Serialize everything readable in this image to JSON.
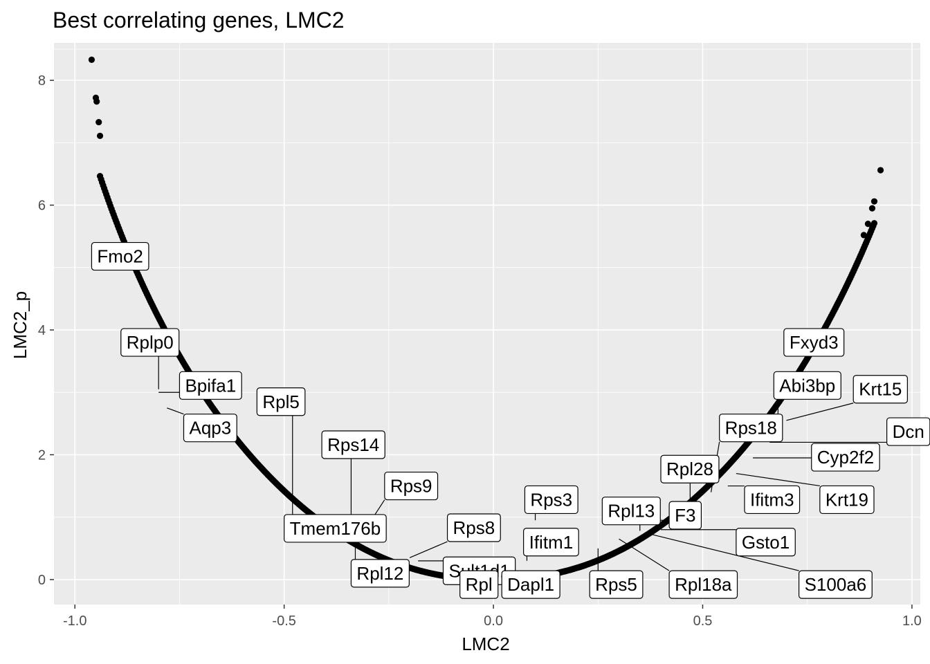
{
  "chart_data": {
    "type": "scatter",
    "title": "Best correlating genes, LMC2",
    "xlabel": "LMC2",
    "ylabel": "LMC2_p",
    "xlim": [
      -1.05,
      1.02
    ],
    "ylim": [
      -0.4,
      8.6
    ],
    "xticks": [
      -1.0,
      -0.5,
      0.0,
      0.5,
      1.0
    ],
    "xtick_labels": [
      "-1.0",
      "-0.5",
      "0.0",
      "0.5",
      "1.0"
    ],
    "yticks": [
      0,
      2,
      4,
      6,
      8
    ],
    "ytick_labels": [
      "0",
      "2",
      "4",
      "6",
      "8"
    ],
    "grid": true,
    "background": "#ebebeb",
    "point_color": "#000000",
    "curve": {
      "description_free_points": true,
      "left_x_range": [
        -0.94,
        -0.02
      ],
      "right_x_range": [
        0.02,
        0.91
      ],
      "extreme_points": [
        {
          "x": -0.96,
          "y": 8.33
        },
        {
          "x": -0.95,
          "y": 7.72
        },
        {
          "x": -0.948,
          "y": 7.66
        },
        {
          "x": -0.943,
          "y": 7.33
        },
        {
          "x": -0.94,
          "y": 7.11
        },
        {
          "x": 0.925,
          "y": 6.56
        },
        {
          "x": 0.91,
          "y": 6.06
        },
        {
          "x": 0.905,
          "y": 5.95
        },
        {
          "x": 0.895,
          "y": 5.7
        },
        {
          "x": 0.885,
          "y": 5.52
        }
      ]
    },
    "labeled_points": [
      {
        "name": "Fmo2",
        "x": -0.88,
        "y": 5.2,
        "lx": -0.96,
        "ly": 5.18
      },
      {
        "name": "Rplp0",
        "x": -0.8,
        "y": 3.05,
        "lx": -0.89,
        "ly": 3.8
      },
      {
        "name": "Bpifa1",
        "x": -0.8,
        "y": 3.0,
        "lx": -0.75,
        "ly": 3.11
      },
      {
        "name": "Aqp3",
        "x": -0.78,
        "y": 2.75,
        "lx": -0.74,
        "ly": 2.43
      },
      {
        "name": "Rpl5",
        "x": -0.48,
        "y": 1.3,
        "lx": -0.565,
        "ly": 2.85
      },
      {
        "name": "Tmem176b",
        "x": -0.48,
        "y": 1.28,
        "lx": -0.5,
        "ly": 0.82
      },
      {
        "name": "Rps14",
        "x": -0.34,
        "y": 0.72,
        "lx": -0.41,
        "ly": 2.16
      },
      {
        "name": "Rps9",
        "x": -0.32,
        "y": 0.66,
        "lx": -0.26,
        "ly": 1.5
      },
      {
        "name": "Rpl12",
        "x": -0.33,
        "y": 0.68,
        "lx": -0.34,
        "ly": 0.1
      },
      {
        "name": "Rps8",
        "x": -0.2,
        "y": 0.35,
        "lx": -0.11,
        "ly": 0.83
      },
      {
        "name": "Sult1d1",
        "x": -0.18,
        "y": 0.3,
        "lx": -0.12,
        "ly": 0.14
      },
      {
        "name": "Rpl",
        "x": -0.07,
        "y": 0.1,
        "lx": -0.08,
        "ly": -0.08
      },
      {
        "name": "Dapl1",
        "x": 0.05,
        "y": 0.1,
        "lx": 0.02,
        "ly": -0.08
      },
      {
        "name": "Rps3",
        "x": 0.1,
        "y": 0.95,
        "lx": 0.075,
        "ly": 1.28
      },
      {
        "name": "Ifitm1",
        "x": 0.08,
        "y": 0.3,
        "lx": 0.072,
        "ly": 0.6
      },
      {
        "name": "Rps5",
        "x": 0.25,
        "y": 0.5,
        "lx": 0.23,
        "ly": -0.08
      },
      {
        "name": "Rpl13",
        "x": 0.35,
        "y": 0.78,
        "lx": 0.26,
        "ly": 1.1
      },
      {
        "name": "Rpl18a",
        "x": 0.3,
        "y": 0.65,
        "lx": 0.42,
        "ly": -0.08
      },
      {
        "name": "F3",
        "x": 0.38,
        "y": 0.95,
        "lx": 0.42,
        "ly": 1.03
      },
      {
        "name": "Gsto1",
        "x": 0.4,
        "y": 0.8,
        "lx": 0.58,
        "ly": 0.6
      },
      {
        "name": "S100a6",
        "x": 0.38,
        "y": 0.72,
        "lx": 0.73,
        "ly": -0.08
      },
      {
        "name": "Rpl28",
        "x": 0.47,
        "y": 1.25,
        "lx": 0.4,
        "ly": 1.77
      },
      {
        "name": "Rps18",
        "x": 0.52,
        "y": 1.4,
        "lx": 0.54,
        "ly": 2.43
      },
      {
        "name": "Ifitm3",
        "x": 0.56,
        "y": 1.5,
        "lx": 0.6,
        "ly": 1.28
      },
      {
        "name": "Krt19",
        "x": 0.58,
        "y": 1.7,
        "lx": 0.78,
        "ly": 1.28
      },
      {
        "name": "Cyp2f2",
        "x": 0.62,
        "y": 1.95,
        "lx": 0.76,
        "ly": 1.96
      },
      {
        "name": "Dcn",
        "x": 0.66,
        "y": 2.2,
        "lx": 0.94,
        "ly": 2.37
      },
      {
        "name": "Abi3bp",
        "x": 0.68,
        "y": 2.5,
        "lx": 0.67,
        "ly": 3.11
      },
      {
        "name": "Krt15",
        "x": 0.7,
        "y": 2.55,
        "lx": 0.86,
        "ly": 3.05
      },
      {
        "name": "Fxyd3",
        "x": 0.74,
        "y": 3.8,
        "lx": 0.694,
        "ly": 3.8
      }
    ]
  }
}
